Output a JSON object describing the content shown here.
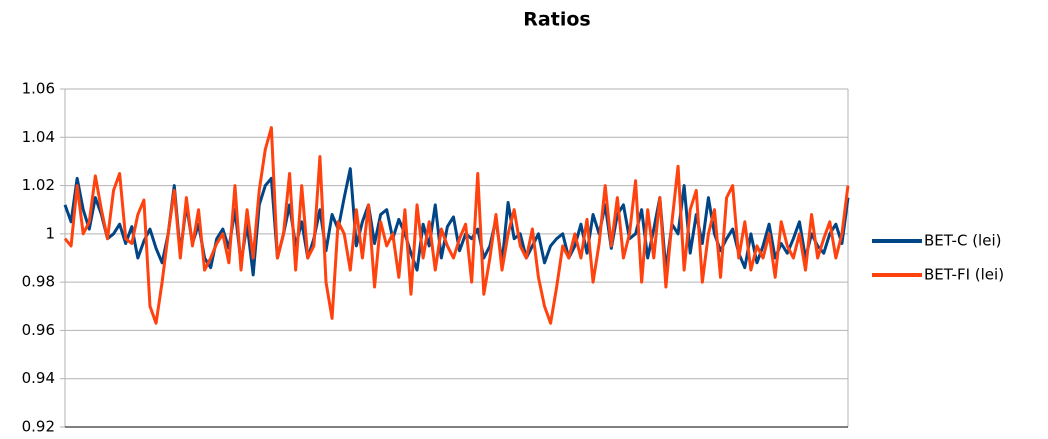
{
  "chart_data": {
    "type": "line",
    "title": "Ratios",
    "categories": [
      null,
      null,
      null,
      null,
      null,
      null,
      null,
      null,
      null,
      null,
      null,
      null,
      null,
      null,
      null,
      null,
      null,
      null,
      null,
      null,
      null,
      null,
      null,
      null,
      null,
      null,
      null,
      null,
      null,
      null,
      null,
      null,
      null,
      null,
      null,
      null,
      null,
      null,
      null,
      null,
      null,
      null,
      null,
      null,
      null,
      null,
      null,
      null,
      null,
      null,
      null,
      null,
      null,
      null,
      null,
      null,
      null,
      null,
      null,
      null,
      null,
      null,
      null,
      null,
      null,
      null,
      null,
      null,
      null,
      null,
      null,
      null,
      null,
      null,
      null,
      null,
      null,
      null,
      null,
      null,
      null,
      null,
      null,
      null,
      null,
      null,
      null,
      null,
      null,
      null,
      null,
      null,
      null,
      null,
      null,
      null,
      null,
      null,
      null,
      null,
      null,
      null,
      null,
      null,
      null,
      null,
      null,
      null,
      null,
      null,
      null,
      null,
      null,
      null,
      null,
      null,
      null,
      null,
      null,
      null,
      null,
      null,
      null,
      null,
      null,
      null,
      null,
      null,
      null,
      null
    ],
    "series": [
      {
        "name": "BET-C (lei)",
        "color": "#004586",
        "values": [
          1.012,
          1.005,
          1.023,
          1.01,
          1.002,
          1.015,
          1.008,
          0.998,
          1.0,
          1.004,
          0.996,
          1.003,
          0.99,
          0.997,
          1.002,
          0.994,
          0.988,
          1.0,
          1.02,
          0.992,
          1.012,
          0.996,
          1.004,
          0.99,
          0.986,
          0.998,
          1.002,
          0.994,
          1.01,
          0.988,
          1.004,
          0.983,
          1.012,
          1.02,
          1.023,
          0.99,
          1.0,
          1.012,
          0.995,
          1.005,
          0.99,
          0.998,
          1.01,
          0.993,
          1.008,
          1.002,
          1.015,
          1.027,
          0.995,
          1.005,
          1.012,
          0.996,
          1.008,
          1.01,
          0.998,
          1.006,
          1.0,
          0.992,
          0.985,
          1.004,
          0.995,
          1.012,
          0.99,
          1.003,
          1.007,
          0.993,
          1.0,
          0.998,
          1.002,
          0.99,
          0.995,
          1.006,
          0.988,
          1.013,
          0.998,
          1.0,
          0.99,
          0.995,
          1.0,
          0.988,
          0.995,
          0.998,
          1.0,
          0.99,
          0.995,
          1.004,
          0.992,
          1.008,
          1.0,
          1.012,
          0.994,
          1.008,
          1.012,
          0.998,
          1.0,
          1.01,
          0.99,
          1.002,
          1.015,
          0.985,
          1.004,
          1.0,
          1.02,
          0.992,
          1.008,
          0.996,
          1.015,
          1.0,
          0.993,
          0.998,
          1.002,
          0.992,
          0.986,
          1.0,
          0.988,
          0.995,
          1.004,
          0.99,
          0.996,
          0.992,
          0.998,
          1.005,
          0.99,
          1.0,
          0.995,
          0.992,
          1.0,
          1.004,
          0.996,
          1.015
        ]
      },
      {
        "name": "BET-FI (lei)",
        "color": "#ff420e",
        "values": [
          0.998,
          0.995,
          1.02,
          1.0,
          1.005,
          1.024,
          1.01,
          0.998,
          1.018,
          1.025,
          0.998,
          0.996,
          1.008,
          1.014,
          0.97,
          0.963,
          0.98,
          1.0,
          1.018,
          0.99,
          1.015,
          0.995,
          1.01,
          0.985,
          0.99,
          0.996,
          1.0,
          0.988,
          1.02,
          0.985,
          1.01,
          0.99,
          1.018,
          1.035,
          1.044,
          0.99,
          1.0,
          1.025,
          0.985,
          1.02,
          0.99,
          0.995,
          1.032,
          0.98,
          0.965,
          1.005,
          1.0,
          0.985,
          1.01,
          0.99,
          1.012,
          0.978,
          1.005,
          0.995,
          1.0,
          0.982,
          1.01,
          0.975,
          1.012,
          0.99,
          1.005,
          0.985,
          1.002,
          0.995,
          0.99,
          0.998,
          1.004,
          0.98,
          1.025,
          0.975,
          0.99,
          1.008,
          0.985,
          1.0,
          1.01,
          0.995,
          0.99,
          1.002,
          0.982,
          0.97,
          0.963,
          0.978,
          0.995,
          0.99,
          1.0,
          0.99,
          1.006,
          0.98,
          0.996,
          1.02,
          0.995,
          1.015,
          0.99,
          1.0,
          1.022,
          0.98,
          1.01,
          0.99,
          1.015,
          0.978,
          1.005,
          1.028,
          0.985,
          1.01,
          1.018,
          0.98,
          1.0,
          1.01,
          0.982,
          1.015,
          1.02,
          0.99,
          1.005,
          0.985,
          0.995,
          0.99,
          1.0,
          0.982,
          1.005,
          0.995,
          0.99,
          1.0,
          0.985,
          1.008,
          0.99,
          0.998,
          1.005,
          0.99,
          1.0,
          1.02
        ]
      }
    ],
    "ylim": [
      0.92,
      1.06
    ],
    "yticks": [
      0.92,
      0.94,
      0.96,
      0.98,
      1,
      1.02,
      1.04,
      1.06
    ],
    "grid": true,
    "legend": "right"
  }
}
